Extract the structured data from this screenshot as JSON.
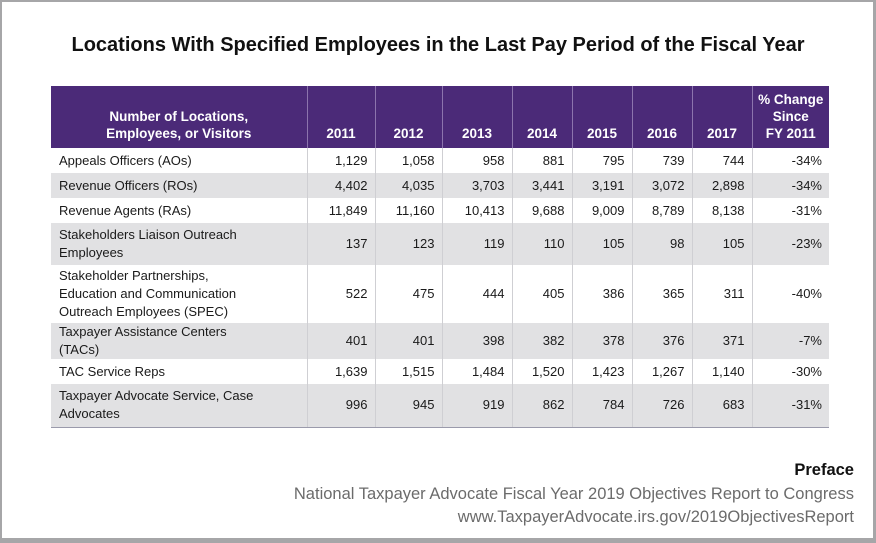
{
  "title": "Locations With Specified Employees in the Last Pay Period of the Fiscal Year",
  "table": {
    "header_bg": "#4b2a78",
    "columns": [
      "Number of Locations, Employees, or Visitors",
      "2011",
      "2012",
      "2013",
      "2014",
      "2015",
      "2016",
      "2017",
      "% Change Since FY 2011"
    ],
    "header_lines": {
      "label_line1": "Number of Locations,",
      "label_line2": "Employees, or Visitors",
      "change_line1": "% Change",
      "change_line2": "Since",
      "change_line3": "FY 2011"
    },
    "rows": [
      {
        "label": "Appeals Officers (AOs)",
        "values": [
          "1,129",
          "1,058",
          "958",
          "881",
          "795",
          "739",
          "744"
        ],
        "change": "-34%"
      },
      {
        "label": "Revenue Officers (ROs)",
        "values": [
          "4,402",
          "4,035",
          "3,703",
          "3,441",
          "3,191",
          "3,072",
          "2,898"
        ],
        "change": "-34%"
      },
      {
        "label": "Revenue Agents (RAs)",
        "values": [
          "11,849",
          "11,160",
          "10,413",
          "9,688",
          "9,009",
          "8,789",
          "8,138"
        ],
        "change": "-31%"
      },
      {
        "label": "Stakeholders Liaison Outreach Employees",
        "values": [
          "137",
          "123",
          "119",
          "110",
          "105",
          "98",
          "105"
        ],
        "change": "-23%"
      },
      {
        "label": "Stakeholder Partnerships, Education and Communication Outreach Employees (SPEC)",
        "values": [
          "522",
          "475",
          "444",
          "405",
          "386",
          "365",
          "311"
        ],
        "change": "-40%"
      },
      {
        "label": "Taxpayer Assistance Centers (TACs)",
        "values": [
          "401",
          "401",
          "398",
          "382",
          "378",
          "376",
          "371"
        ],
        "change": "-7%"
      },
      {
        "label": "TAC Service Reps",
        "values": [
          "1,639",
          "1,515",
          "1,484",
          "1,520",
          "1,423",
          "1,267",
          "1,140"
        ],
        "change": "-30%"
      },
      {
        "label": "Taxpayer Advocate Service, Case Advocates",
        "values": [
          "996",
          "945",
          "919",
          "862",
          "784",
          "726",
          "683"
        ],
        "change": "-31%"
      }
    ]
  },
  "footer": {
    "section": "Preface",
    "report": "National Taxpayer Advocate Fiscal Year 2019 Objectives Report to Congress",
    "url": "www.TaxpayerAdvocate.irs.gov/2019ObjectivesReport"
  }
}
